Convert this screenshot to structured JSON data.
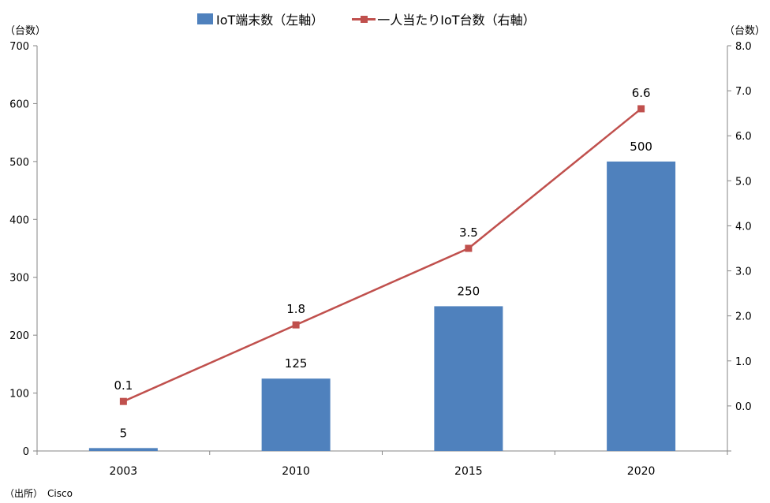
{
  "legend": {
    "bar_label": "IoT端末数（左軸）",
    "line_label": "一人当たりIoT台数（右軸）"
  },
  "left_unit": "（台数）",
  "right_unit": "（台数）",
  "source": {
    "prefix": "（出所）",
    "org": "Cisco"
  },
  "colors": {
    "bar": "#4f81bd",
    "line": "#c0504d",
    "axis": "#868686"
  },
  "chart_data": {
    "type": "bar",
    "categories": [
      "2003",
      "2010",
      "2015",
      "2020"
    ],
    "series": [
      {
        "name": "IoT端末数（左軸）",
        "type": "bar",
        "axis": "left",
        "values": [
          5,
          125,
          250,
          500
        ]
      },
      {
        "name": "一人当たりIoT台数（右軸）",
        "type": "line",
        "axis": "right",
        "values": [
          0.1,
          1.8,
          3.5,
          6.6
        ]
      }
    ],
    "left_axis": {
      "min": 0,
      "max": 700,
      "step": 100,
      "tick_labels": [
        "0",
        "100",
        "200",
        "300",
        "400",
        "500",
        "600",
        "700"
      ]
    },
    "right_axis": {
      "min": -1,
      "max": 8,
      "step": 1,
      "tick_labels": [
        "0.0",
        "1.0",
        "2.0",
        "3.0",
        "4.0",
        "5.0",
        "6.0",
        "7.0",
        "8.0"
      ]
    },
    "bar_data_labels": [
      "5",
      "125",
      "250",
      "500"
    ],
    "line_data_labels": [
      "0.1",
      "1.8",
      "3.5",
      "6.6"
    ],
    "grid": false,
    "legend_position": "top"
  }
}
